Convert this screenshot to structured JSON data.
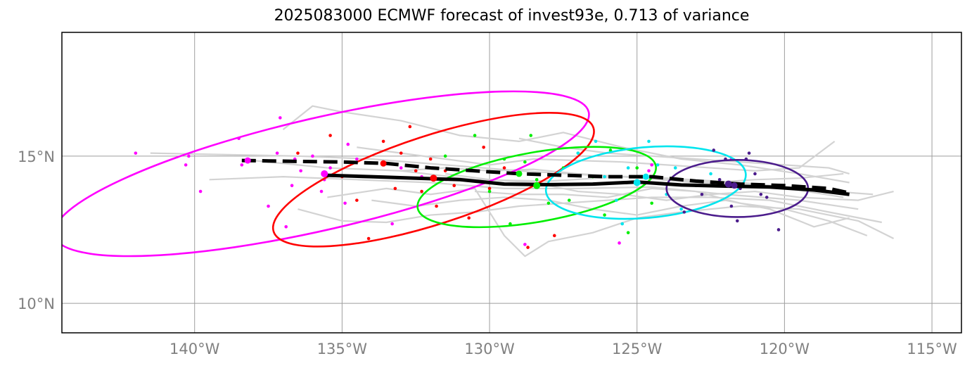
{
  "chart_data": {
    "type": "line",
    "title": "2025083000 ECMWF forecast of invest93e, 0.713 of variance",
    "xlabel": "",
    "ylabel": "",
    "xlim": [
      -144.5,
      -114.0
    ],
    "ylim": [
      9.0,
      19.2
    ],
    "grid": true,
    "x_ticks": [
      -140,
      -135,
      -130,
      -125,
      -120,
      -115
    ],
    "x_tick_labels": [
      "140°W",
      "135°W",
      "130°W",
      "125°W",
      "120°W",
      "115°W"
    ],
    "y_ticks": [
      10,
      15
    ],
    "y_tick_labels": [
      "10°N",
      "15°N"
    ],
    "colors": {
      "ensemble_track": "#d3d3d3",
      "mean_track": "#000000",
      "grid": "#9e9e9e",
      "magenta": "#ff00ff",
      "red": "#ff0000",
      "green": "#00ee00",
      "cyan": "#00e5ee",
      "purple": "#4b1c8c"
    },
    "series": [
      {
        "name": "ensemble mean forecast track (solid)",
        "style": "solid",
        "color": "#000000",
        "points": [
          [
            -135.6,
            14.35
          ],
          [
            -134.0,
            14.3
          ],
          [
            -132.5,
            14.25
          ],
          [
            -131.0,
            14.2
          ],
          [
            -129.5,
            14.05
          ],
          [
            -128.0,
            14.03
          ],
          [
            -126.5,
            14.05
          ],
          [
            -125.0,
            14.12
          ],
          [
            -123.5,
            14.02
          ],
          [
            -122.0,
            13.98
          ],
          [
            -120.5,
            13.95
          ],
          [
            -119.0,
            13.85
          ],
          [
            -117.8,
            13.7
          ]
        ]
      },
      {
        "name": "deterministic forecast track (dashed)",
        "style": "dashed",
        "color": "#000000",
        "points": [
          [
            -138.4,
            14.85
          ],
          [
            -136.5,
            14.82
          ],
          [
            -135.0,
            14.8
          ],
          [
            -133.5,
            14.75
          ],
          [
            -132.0,
            14.6
          ],
          [
            -130.5,
            14.5
          ],
          [
            -129.0,
            14.4
          ],
          [
            -127.5,
            14.35
          ],
          [
            -126.0,
            14.3
          ],
          [
            -124.5,
            14.3
          ],
          [
            -123.0,
            14.15
          ],
          [
            -121.5,
            14.05
          ],
          [
            -120.0,
            14.0
          ],
          [
            -118.5,
            13.9
          ],
          [
            -117.8,
            13.75
          ]
        ]
      }
    ],
    "ensemble_tracks": [
      [
        [
          -141.5,
          15.1
        ],
        [
          -139.0,
          15.05
        ],
        [
          -136.5,
          15.0
        ],
        [
          -134.0,
          14.9
        ],
        [
          -131.5,
          14.7
        ],
        [
          -129.0,
          14.5
        ],
        [
          -126.5,
          14.35
        ],
        [
          -124.0,
          14.25
        ],
        [
          -121.5,
          14.1
        ],
        [
          -119.0,
          13.85
        ],
        [
          -117.0,
          13.7
        ]
      ],
      [
        [
          -139.5,
          14.2
        ],
        [
          -137.0,
          14.3
        ],
        [
          -134.5,
          14.2
        ],
        [
          -132.0,
          14.1
        ],
        [
          -129.5,
          13.9
        ],
        [
          -127.0,
          13.9
        ],
        [
          -124.5,
          13.95
        ],
        [
          -122.0,
          13.7
        ],
        [
          -119.5,
          13.5
        ],
        [
          -117.5,
          13.2
        ]
      ],
      [
        [
          -138.0,
          14.85
        ],
        [
          -135.5,
          14.6
        ],
        [
          -133.0,
          14.5
        ],
        [
          -130.5,
          14.2
        ],
        [
          -128.0,
          14.15
        ],
        [
          -125.5,
          14.3
        ],
        [
          -123.0,
          14.1
        ],
        [
          -120.5,
          14.0
        ],
        [
          -118.0,
          13.6
        ]
      ],
      [
        [
          -137.0,
          15.9
        ],
        [
          -136.0,
          16.7
        ],
        [
          -135.0,
          16.5
        ],
        [
          -133.0,
          16.2
        ],
        [
          -131.0,
          15.7
        ],
        [
          -129.0,
          15.5
        ],
        [
          -127.5,
          15.8
        ],
        [
          -125.5,
          15.3
        ],
        [
          -123.5,
          14.9
        ],
        [
          -121.5,
          14.7
        ],
        [
          -119.5,
          14.4
        ],
        [
          -117.8,
          14.1
        ]
      ],
      [
        [
          -136.5,
          13.2
        ],
        [
          -135.0,
          12.8
        ],
        [
          -133.5,
          12.75
        ],
        [
          -132.0,
          13.0
        ],
        [
          -130.5,
          13.1
        ],
        [
          -129.0,
          13.3
        ],
        [
          -127.5,
          13.4
        ],
        [
          -126.0,
          13.5
        ],
        [
          -124.5,
          13.6
        ],
        [
          -122.5,
          13.6
        ],
        [
          -120.5,
          13.5
        ],
        [
          -118.5,
          13.1
        ],
        [
          -116.7,
          12.75
        ]
      ],
      [
        [
          -135.5,
          13.6
        ],
        [
          -133.5,
          13.9
        ],
        [
          -132.0,
          13.7
        ],
        [
          -130.5,
          13.9
        ],
        [
          -129.5,
          12.3
        ],
        [
          -128.8,
          11.6
        ],
        [
          -128.0,
          12.1
        ],
        [
          -126.5,
          12.4
        ],
        [
          -125.0,
          12.9
        ],
        [
          -123.5,
          13.1
        ],
        [
          -121.5,
          13.3
        ],
        [
          -119.5,
          13.2
        ],
        [
          -117.5,
          12.8
        ],
        [
          -116.3,
          12.2
        ]
      ],
      [
        [
          -134.5,
          15.3
        ],
        [
          -133.0,
          15.1
        ],
        [
          -131.5,
          14.9
        ],
        [
          -130.0,
          14.7
        ],
        [
          -128.5,
          14.9
        ],
        [
          -127.0,
          14.85
        ],
        [
          -125.5,
          14.8
        ],
        [
          -124.0,
          14.7
        ],
        [
          -122.5,
          14.6
        ],
        [
          -121.0,
          14.5
        ],
        [
          -119.5,
          14.6
        ],
        [
          -118.3,
          15.5
        ]
      ],
      [
        [
          -131.5,
          14.4
        ],
        [
          -130.0,
          14.2
        ],
        [
          -128.5,
          14.1
        ],
        [
          -127.0,
          13.8
        ],
        [
          -125.5,
          13.7
        ],
        [
          -124.0,
          13.5
        ],
        [
          -122.5,
          13.7
        ],
        [
          -121.0,
          13.8
        ],
        [
          -119.5,
          13.6
        ],
        [
          -117.5,
          13.5
        ],
        [
          -116.3,
          13.8
        ]
      ],
      [
        [
          -133.0,
          14.5
        ],
        [
          -131.5,
          14.6
        ],
        [
          -130.0,
          14.5
        ],
        [
          -128.5,
          14.55
        ],
        [
          -127.0,
          14.4
        ],
        [
          -125.5,
          14.3
        ],
        [
          -124.0,
          14.2
        ],
        [
          -122.5,
          14.1
        ],
        [
          -121.0,
          14.2
        ],
        [
          -119.5,
          14.25
        ],
        [
          -118.0,
          14.4
        ]
      ],
      [
        [
          -134.0,
          13.5
        ],
        [
          -132.5,
          13.3
        ],
        [
          -131.0,
          13.5
        ],
        [
          -129.5,
          13.6
        ],
        [
          -128.0,
          13.5
        ],
        [
          -126.5,
          13.2
        ],
        [
          -125.0,
          13.0
        ],
        [
          -123.5,
          13.3
        ],
        [
          -122.0,
          13.5
        ],
        [
          -120.5,
          13.2
        ],
        [
          -119.0,
          12.6
        ],
        [
          -117.8,
          12.9
        ]
      ],
      [
        [
          -129.0,
          15.6
        ],
        [
          -127.5,
          15.3
        ],
        [
          -126.0,
          15.1
        ],
        [
          -124.5,
          15.0
        ],
        [
          -123.0,
          14.9
        ],
        [
          -121.5,
          14.8
        ],
        [
          -120.0,
          14.7
        ],
        [
          -118.5,
          14.6
        ],
        [
          -117.8,
          14.4
        ]
      ],
      [
        [
          -130.5,
          13.8
        ],
        [
          -129.0,
          13.7
        ],
        [
          -127.5,
          13.7
        ],
        [
          -126.0,
          13.6
        ],
        [
          -124.5,
          13.9
        ],
        [
          -123.0,
          13.8
        ],
        [
          -121.5,
          13.4
        ],
        [
          -120.0,
          13.2
        ],
        [
          -118.5,
          12.8
        ],
        [
          -117.2,
          12.3
        ]
      ]
    ],
    "day_groups": [
      {
        "name": "magenta",
        "color": "#ff00ff",
        "ellipse": {
          "cx": -135.7,
          "cy": 14.4,
          "rx": 9.3,
          "ry": 1.9,
          "angle_deg": -13
        },
        "mean_point": [
          -135.6,
          14.4
        ],
        "det_point": [
          -138.2,
          14.85
        ],
        "points": [
          [
            -142.0,
            15.1
          ],
          [
            -140.3,
            14.7
          ],
          [
            -140.2,
            15.0
          ],
          [
            -139.8,
            13.8
          ],
          [
            -138.5,
            15.6
          ],
          [
            -138.4,
            14.7
          ],
          [
            -137.5,
            13.3
          ],
          [
            -137.2,
            15.1
          ],
          [
            -137.1,
            16.3
          ],
          [
            -136.9,
            12.6
          ],
          [
            -136.7,
            14.0
          ],
          [
            -136.6,
            14.9
          ],
          [
            -136.4,
            14.5
          ],
          [
            -136.0,
            15.0
          ],
          [
            -135.7,
            13.8
          ],
          [
            -135.6,
            14.2
          ],
          [
            -135.4,
            14.6
          ],
          [
            -134.9,
            13.4
          ],
          [
            -134.8,
            15.4
          ],
          [
            -134.5,
            14.9
          ],
          [
            -133.3,
            12.7
          ],
          [
            -133.0,
            14.6
          ],
          [
            -132.3,
            14.3
          ],
          [
            -128.8,
            12.0
          ],
          [
            -125.6,
            12.05
          ],
          [
            -124.6,
            14.5
          ],
          [
            -124.5,
            14.7
          ],
          [
            -121.8,
            14.9
          ]
        ]
      },
      {
        "name": "red",
        "color": "#ff0000",
        "ellipse": {
          "cx": -131.9,
          "cy": 14.2,
          "rx": 5.7,
          "ry": 1.5,
          "angle_deg": -18
        },
        "mean_point": [
          -131.9,
          14.25
        ],
        "det_point": [
          -133.6,
          14.75
        ],
        "points": [
          [
            -136.5,
            15.1
          ],
          [
            -135.4,
            15.7
          ],
          [
            -135.0,
            14.3
          ],
          [
            -134.5,
            13.5
          ],
          [
            -134.1,
            12.2
          ],
          [
            -133.6,
            15.5
          ],
          [
            -133.2,
            13.9
          ],
          [
            -133.0,
            15.1
          ],
          [
            -132.7,
            16.0
          ],
          [
            -132.5,
            14.5
          ],
          [
            -132.3,
            13.8
          ],
          [
            -132.0,
            14.9
          ],
          [
            -131.8,
            13.3
          ],
          [
            -131.5,
            14.5
          ],
          [
            -131.2,
            14.0
          ],
          [
            -130.7,
            12.9
          ],
          [
            -130.2,
            15.3
          ],
          [
            -130.0,
            13.9
          ],
          [
            -129.5,
            14.6
          ],
          [
            -128.7,
            11.9
          ],
          [
            -127.8,
            12.3
          ]
        ]
      },
      {
        "name": "green",
        "color": "#00ee00",
        "ellipse": {
          "cx": -128.4,
          "cy": 13.95,
          "rx": 4.1,
          "ry": 1.18,
          "angle_deg": -10
        },
        "mean_point": [
          -128.4,
          14.0
        ],
        "det_point": [
          -129.0,
          14.4
        ],
        "points": [
          [
            -131.5,
            15.0
          ],
          [
            -130.5,
            15.7
          ],
          [
            -130.0,
            13.8
          ],
          [
            -129.5,
            14.9
          ],
          [
            -129.3,
            12.7
          ],
          [
            -128.8,
            14.8
          ],
          [
            -128.6,
            15.7
          ],
          [
            -128.4,
            14.2
          ],
          [
            -128.0,
            13.4
          ],
          [
            -127.5,
            14.6
          ],
          [
            -127.3,
            13.5
          ],
          [
            -127.0,
            15.1
          ],
          [
            -126.5,
            14.3
          ],
          [
            -126.1,
            13.0
          ],
          [
            -125.9,
            15.2
          ],
          [
            -125.3,
            12.4
          ],
          [
            -125.0,
            14.6
          ],
          [
            -124.5,
            13.4
          ]
        ]
      },
      {
        "name": "cyan",
        "color": "#00e5ee",
        "ellipse": {
          "cx": -124.7,
          "cy": 14.1,
          "rx": 3.4,
          "ry": 1.2,
          "angle_deg": -5
        },
        "mean_point": [
          -125.0,
          14.1
        ],
        "det_point": [
          -124.7,
          14.3
        ],
        "points": [
          [
            -127.0,
            15.1
          ],
          [
            -126.4,
            15.5
          ],
          [
            -126.1,
            14.3
          ],
          [
            -125.7,
            13.5
          ],
          [
            -125.5,
            12.7
          ],
          [
            -125.3,
            14.6
          ],
          [
            -124.9,
            14.1
          ],
          [
            -124.6,
            15.5
          ],
          [
            -124.3,
            14.7
          ],
          [
            -124.0,
            13.7
          ],
          [
            -123.7,
            14.6
          ],
          [
            -123.5,
            13.2
          ],
          [
            -123.0,
            14.0
          ],
          [
            -122.5,
            14.4
          ]
        ]
      },
      {
        "name": "purple",
        "color": "#4b1c8c",
        "ellipse": {
          "cx": -121.6,
          "cy": 13.9,
          "rx": 2.4,
          "ry": 0.97,
          "angle_deg": 0
        },
        "mean_point": [
          -121.9,
          14.05
        ],
        "det_point": [
          -121.7,
          14.0
        ],
        "points": [
          [
            -123.4,
            13.1
          ],
          [
            -123.0,
            14.0
          ],
          [
            -122.8,
            13.7
          ],
          [
            -122.4,
            15.2
          ],
          [
            -122.2,
            14.2
          ],
          [
            -122.0,
            14.9
          ],
          [
            -121.8,
            13.3
          ],
          [
            -121.6,
            12.8
          ],
          [
            -121.5,
            13.9
          ],
          [
            -121.3,
            14.9
          ],
          [
            -121.2,
            15.1
          ],
          [
            -121.0,
            14.4
          ],
          [
            -120.8,
            13.7
          ],
          [
            -120.6,
            13.6
          ],
          [
            -120.2,
            12.5
          ],
          [
            -120.8,
            14.0
          ]
        ]
      }
    ]
  }
}
